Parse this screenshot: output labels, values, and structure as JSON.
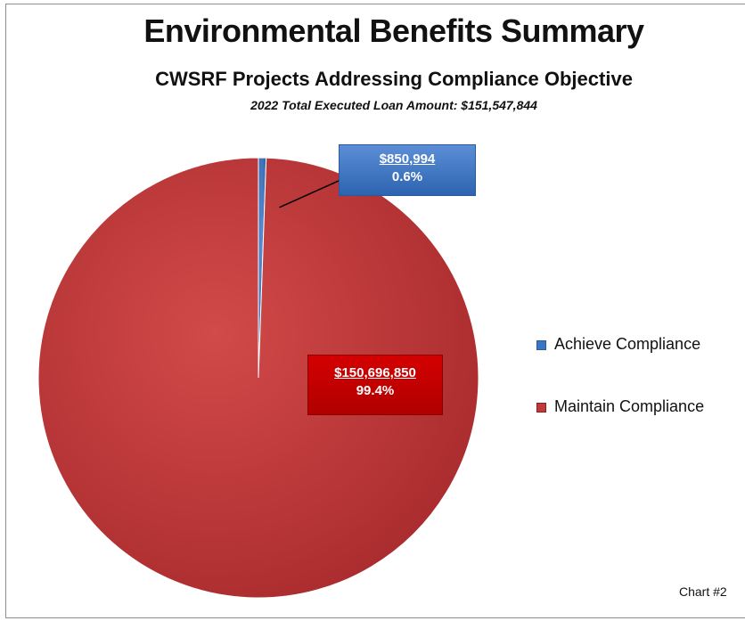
{
  "chart_data": {
    "type": "pie",
    "title": "Environmental Benefits Summary",
    "subtitle": "CWSRF Projects Addressing Compliance Objective",
    "subtitle2": "2022 Total Executed Loan Amount: $151,547,844",
    "slices": [
      {
        "name": "Achieve Compliance",
        "value": 850994,
        "value_label": "$850,994",
        "percent_label": "0.6%",
        "color": "#3a74c4"
      },
      {
        "name": "Maintain Compliance",
        "value": 150696850,
        "value_label": "$150,696,850",
        "percent_label": "99.4%",
        "color": "#c0393b"
      }
    ],
    "legend_placement": "right",
    "footer": "Chart #2"
  }
}
